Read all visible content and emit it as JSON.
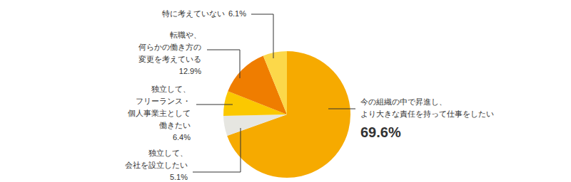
{
  "chart_data": {
    "type": "pie",
    "categories": [
      "今の組織の中で昇進し、\nより大きな責任を持って仕事をしたい",
      "独立して、\n会社を設立したい",
      "独立して、\nフリーランス・\n個人事業主として\n働きたい",
      "転職や、\n何らかの働き方の\n変更を考えている",
      "特に考えていない"
    ],
    "values": [
      69.6,
      5.1,
      6.4,
      12.9,
      6.1
    ],
    "value_labels": [
      "69.6%",
      "5.1%",
      "6.4%",
      "12.9%",
      "6.1%"
    ],
    "colors": [
      "#f6aa00",
      "#e6e6e1",
      "#fbc800",
      "#ef7d00",
      "#fcd84a"
    ],
    "data_labels": true
  }
}
